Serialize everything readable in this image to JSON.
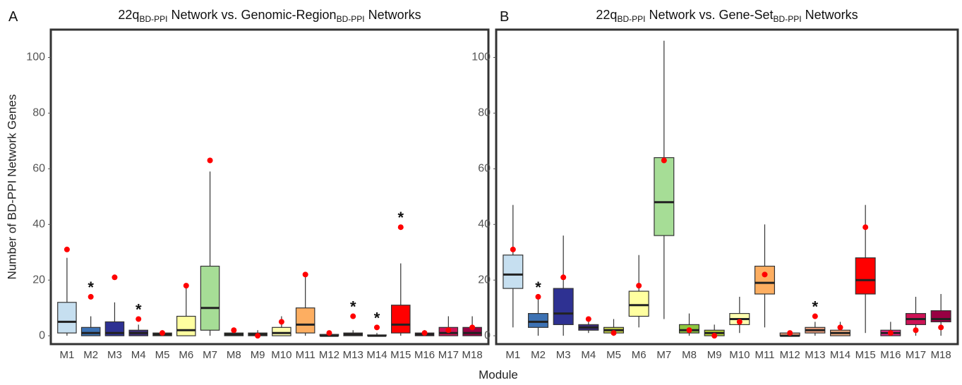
{
  "xlabel": "Module",
  "chart_data": [
    {
      "type": "box",
      "panel": "A",
      "title": [
        "22q",
        "BD-PPI",
        " Network vs. Genomic-Region",
        "BD-PPI",
        " Networks"
      ],
      "ylabel": "Number of BD-PPI Network Genes",
      "categories": [
        "M1",
        "M2",
        "M3",
        "M4",
        "M5",
        "M6",
        "M7",
        "M8",
        "M9",
        "M10",
        "M11",
        "M12",
        "M13",
        "M14",
        "M15",
        "M16",
        "M17",
        "M18"
      ],
      "colors": [
        "#c6dff0",
        "#3d72b4",
        "#2e3192",
        "#3c2d7a",
        "#c8d34a",
        "#ffffa0",
        "#a6dd96",
        "#8dc63f",
        "#b5d334",
        "#ffffb0",
        "#fdae61",
        "#f4a582",
        "#f4a582",
        "#f4b183",
        "#ff0000",
        "#e7298a",
        "#ce1256",
        "#980043"
      ],
      "whisker_low": [
        0,
        0,
        0,
        0,
        0,
        0,
        0,
        0,
        0,
        0,
        0,
        0,
        0,
        0,
        0,
        0,
        0,
        0
      ],
      "q1": [
        1,
        0,
        0,
        0,
        0,
        0,
        2,
        0,
        0,
        0,
        1,
        0,
        0,
        0,
        1,
        0,
        0,
        0
      ],
      "median": [
        5,
        1,
        1,
        1,
        0.5,
        2,
        10,
        0.5,
        0.5,
        1,
        4,
        0,
        0.5,
        0,
        4,
        0.5,
        1,
        1
      ],
      "q3": [
        12,
        3,
        5,
        2,
        1,
        7,
        25,
        1,
        1,
        3,
        10,
        0.5,
        1,
        0.3,
        11,
        1,
        3,
        3
      ],
      "whisker_high": [
        28,
        7,
        12,
        4,
        2,
        18,
        59,
        2,
        2,
        7,
        22,
        1,
        2,
        1,
        26,
        2,
        7,
        7
      ],
      "observed": [
        31,
        14,
        21,
        6,
        1,
        18,
        63,
        2,
        0,
        5,
        22,
        1,
        7,
        3,
        39,
        1,
        2,
        3
      ],
      "observed_color": "#ff0000",
      "stars": [
        null,
        "*",
        null,
        "*",
        null,
        null,
        null,
        null,
        null,
        null,
        null,
        null,
        "*",
        "*",
        "*",
        null,
        null,
        null
      ],
      "ylim": [
        -3,
        110
      ],
      "yticks": [
        0,
        20,
        40,
        60,
        80,
        100
      ]
    },
    {
      "type": "box",
      "panel": "B",
      "title": [
        "22q",
        "BD-PPI",
        " Network vs. Gene-Set",
        "BD-PPI",
        " Networks"
      ],
      "categories": [
        "M1",
        "M2",
        "M3",
        "M4",
        "M5",
        "M6",
        "M7",
        "M8",
        "M9",
        "M10",
        "M11",
        "M12",
        "M13",
        "M14",
        "M15",
        "M16",
        "M17",
        "M18"
      ],
      "colors": [
        "#c6dff0",
        "#3d72b4",
        "#2e3192",
        "#3c2d7a",
        "#c8d34a",
        "#ffffa0",
        "#a6dd96",
        "#8dc63f",
        "#b5d334",
        "#ffffb0",
        "#fdae61",
        "#f4a582",
        "#f4a582",
        "#f4b183",
        "#ff0000",
        "#e7298a",
        "#ce1256",
        "#980043"
      ],
      "whisker_low": [
        3,
        0,
        0,
        1,
        0,
        3,
        6,
        0,
        0,
        1,
        3,
        0,
        0,
        0,
        1,
        0,
        0,
        0
      ],
      "q1": [
        17,
        3,
        4,
        2,
        1,
        7,
        36,
        1,
        0,
        4,
        15,
        0,
        1,
        0,
        15,
        0,
        4,
        5
      ],
      "median": [
        22,
        5,
        8,
        3,
        2,
        11,
        48,
        2,
        1,
        6,
        19,
        0,
        2,
        1,
        20,
        1,
        6,
        6
      ],
      "q3": [
        29,
        8,
        17,
        4,
        3,
        16,
        64,
        4,
        2,
        8,
        25,
        1,
        3,
        2,
        28,
        2,
        8,
        9
      ],
      "whisker_high": [
        47,
        14,
        36,
        5,
        6,
        29,
        106,
        8,
        4,
        14,
        40,
        1,
        5,
        5,
        47,
        5,
        14,
        15
      ],
      "observed": [
        31,
        14,
        21,
        6,
        1,
        18,
        63,
        2,
        0,
        5,
        22,
        1,
        7,
        3,
        39,
        1,
        2,
        3
      ],
      "observed_color": "#ff0000",
      "stars": [
        null,
        "*",
        null,
        null,
        null,
        null,
        null,
        null,
        null,
        null,
        null,
        null,
        "*",
        null,
        null,
        null,
        null,
        null
      ],
      "ylim": [
        -3,
        110
      ],
      "yticks": [
        0,
        20,
        40,
        60,
        80,
        100
      ]
    }
  ]
}
